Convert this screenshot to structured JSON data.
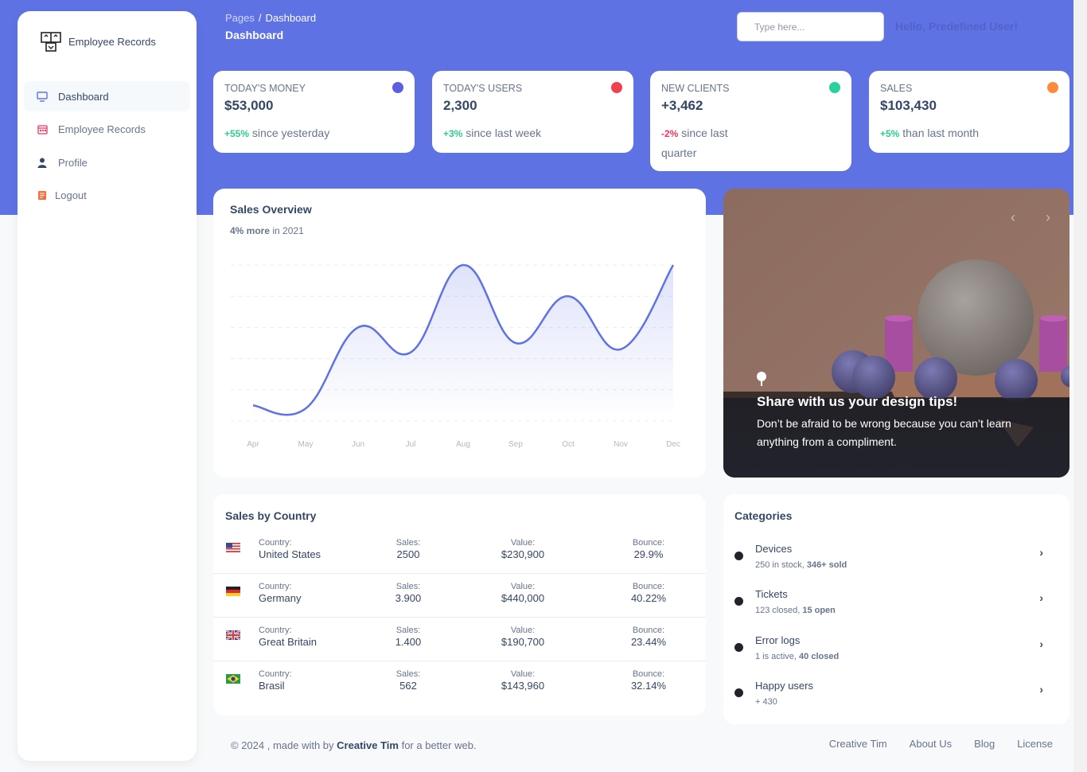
{
  "colors": {
    "primary": "#5e72e4",
    "success": "#2dce89",
    "danger": "#f5365c",
    "dot_money": "#5e5ee0",
    "dot_users": "#f0414f",
    "dot_clients": "#2ccfa0",
    "dot_sales": "#fb8c3c"
  },
  "sidebar": {
    "brand": "Employee Records",
    "items": [
      {
        "label": "Dashboard",
        "icon": "monitor-icon",
        "active": true
      },
      {
        "label": "Employee Records",
        "icon": "calendar-icon"
      },
      {
        "label": "Profile",
        "icon": "user-icon"
      },
      {
        "label": "Logout",
        "icon": "document-icon"
      }
    ]
  },
  "header": {
    "breadcrumb_root": "Pages",
    "breadcrumb_sep": "/",
    "breadcrumb_current": "Dashboard",
    "title": "Dashboard",
    "search_placeholder": "Type here...",
    "greeting": "Hello, Predefined User!"
  },
  "stats": [
    {
      "label": "Today's Money",
      "value": "$53,000",
      "change": "+55%",
      "note": "since yesterday"
    },
    {
      "label": "Today's Users",
      "value": "2,300",
      "change": "+3%",
      "note": "since last week"
    },
    {
      "label": "New Clients",
      "value": "+3,462",
      "change": "-2%",
      "note": "since last quarter"
    },
    {
      "label": "Sales",
      "value": "$103,430",
      "change": "+5%",
      "note": "than last month"
    }
  ],
  "sales_overview": {
    "title": "Sales Overview",
    "sub_bold": "4% more",
    "sub_rest": "in 2021"
  },
  "chart_data": {
    "type": "area",
    "title": "Sales Overview",
    "categories": [
      "Apr",
      "May",
      "Jun",
      "Jul",
      "Aug",
      "Sep",
      "Oct",
      "Nov",
      "Dec"
    ],
    "values": [
      50,
      40,
      300,
      220,
      500,
      250,
      400,
      230,
      500
    ],
    "ylim": [
      0,
      500
    ],
    "grid": true
  },
  "carousel": {
    "title": "Share with us your design tips!",
    "text": "Don’t be afraid to be wrong because you can’t learn anything from a compliment.",
    "prev": "‹",
    "next": "›"
  },
  "sales_by_country": {
    "title": "Sales by Country",
    "labels": {
      "country": "Country:",
      "sales": "Sales:",
      "value": "Value:",
      "bounce": "Bounce:"
    },
    "rows": [
      {
        "country": "United States",
        "sales": "2500",
        "value": "$230,900",
        "bounce": "29.9%",
        "flag": "us-flag-icon"
      },
      {
        "country": "Germany",
        "sales": "3.900",
        "value": "$440,000",
        "bounce": "40.22%",
        "flag": "de-flag-icon"
      },
      {
        "country": "Great Britain",
        "sales": "1.400",
        "value": "$190,700",
        "bounce": "23.44%",
        "flag": "gb-flag-icon"
      },
      {
        "country": "Brasil",
        "sales": "562",
        "value": "$143,960",
        "bounce": "32.14%",
        "flag": "br-flag-icon"
      }
    ]
  },
  "categories": {
    "title": "Categories",
    "items": [
      {
        "name": "Devices",
        "desc_a": "250 in stock, ",
        "desc_b": "346+ sold"
      },
      {
        "name": "Tickets",
        "desc_a": "123 closed, ",
        "desc_b": "15 open"
      },
      {
        "name": "Error logs",
        "desc_a": "1 is active, ",
        "desc_b": "40 closed"
      },
      {
        "name": "Happy users",
        "desc_a": "+ 430",
        "desc_b": ""
      }
    ]
  },
  "footer": {
    "copyright": "© 2024 , made with by",
    "author": "Creative Tim",
    "tail": "for a better web.",
    "links": [
      "Creative Tim",
      "About Us",
      "Blog",
      "License"
    ]
  }
}
